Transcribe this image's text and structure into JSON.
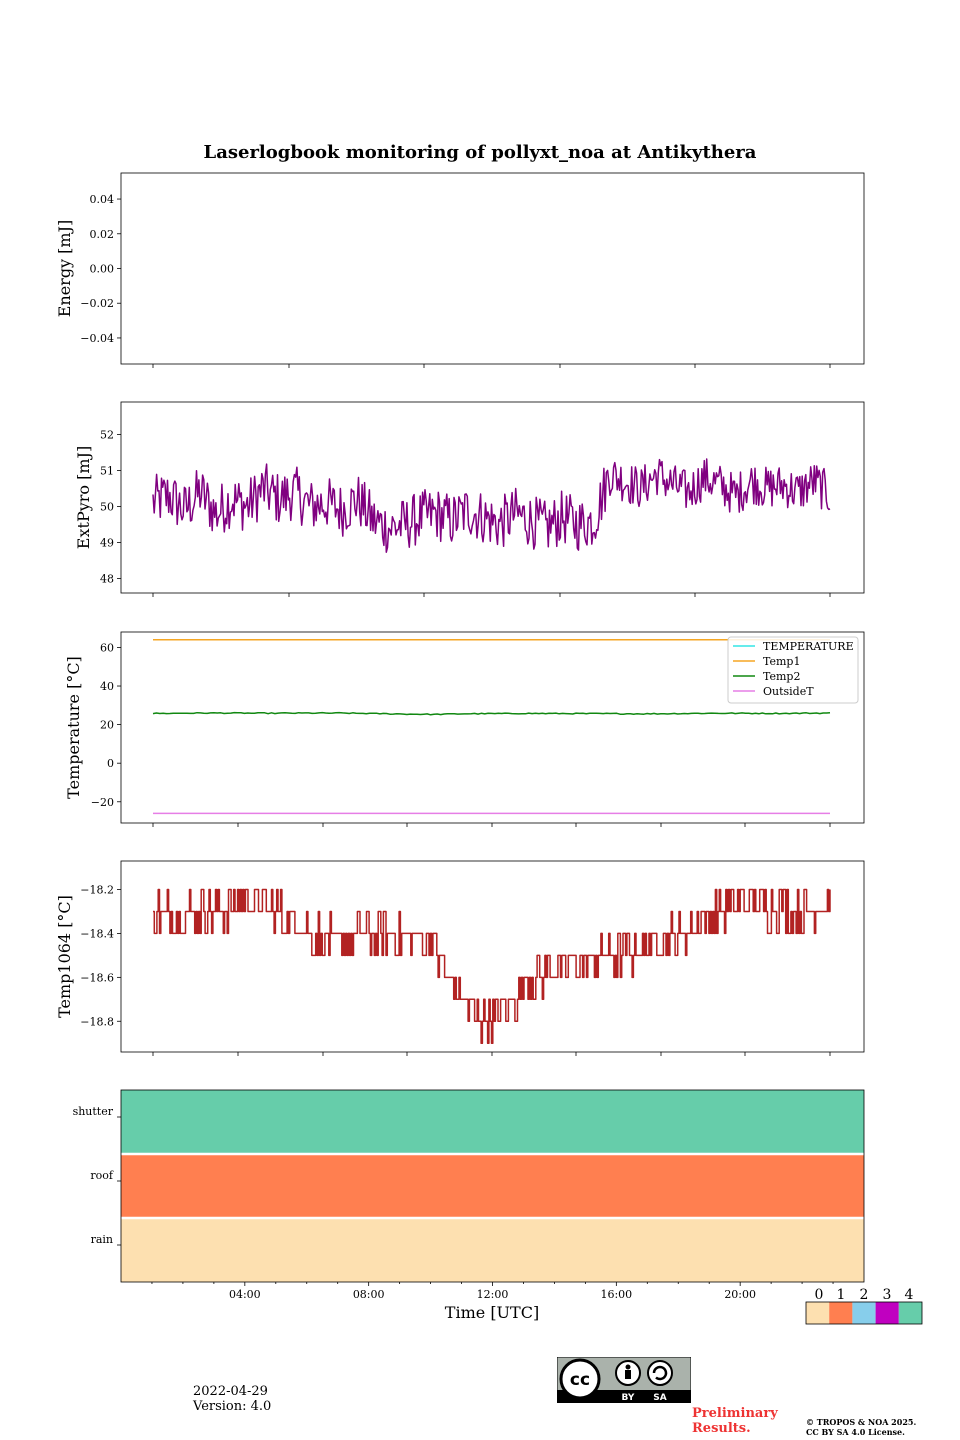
{
  "chart_data": [
    {
      "type": "line",
      "title": "Laserlogbook monitoring of pollyxt_noa at Antikythera",
      "ylabel": "Energy [mJ]",
      "ylim": [
        -0.055,
        0.055
      ],
      "yticks": [
        "0.04",
        "0.02",
        "0.00",
        "−0.02",
        "−0.04"
      ],
      "ytick_values": [
        0.04,
        0.02,
        0.0,
        -0.02,
        -0.04
      ],
      "series": []
    },
    {
      "type": "line",
      "ylabel": "ExtPyro [mJ]",
      "ylim": [
        47.6,
        52.9
      ],
      "yticks": [
        "52",
        "51",
        "50",
        "49",
        "48"
      ],
      "ytick_values": [
        52,
        51,
        50,
        49,
        48
      ],
      "x_hours": [
        1.0,
        1.5,
        2.0,
        2.5,
        3.0,
        3.5,
        4.0,
        4.5,
        5.0,
        5.5,
        6.0,
        6.5,
        7.0,
        7.5,
        8.0,
        8.5,
        9.0,
        9.5,
        10.0,
        10.5,
        11.0,
        11.5,
        12.0,
        12.5,
        13.0,
        13.5,
        14.0,
        14.5,
        15.0,
        15.5,
        16.0,
        16.5,
        17.0,
        17.5,
        18.0,
        18.5,
        19.0,
        19.5,
        20.0,
        20.5,
        21.0,
        21.5,
        22.0,
        22.5
      ],
      "series": [
        {
          "color": "#800080",
          "values": [
            50.1,
            50.3,
            49.9,
            50.4,
            49.8,
            50.2,
            50.0,
            50.5,
            50.2,
            50.4,
            50.0,
            50.1,
            49.9,
            50.2,
            49.6,
            49.4,
            49.5,
            49.7,
            49.8,
            49.6,
            49.9,
            49.7,
            49.5,
            49.8,
            49.6,
            49.4,
            49.7,
            49.5,
            49.6,
            50.9,
            50.7,
            50.5,
            50.9,
            50.6,
            50.4,
            50.8,
            50.6,
            50.3,
            50.7,
            50.5,
            50.6,
            50.4,
            50.7,
            50.3
          ]
        }
      ]
    },
    {
      "type": "line",
      "ylabel": "Temperature [°C]",
      "ylim": [
        -31,
        68
      ],
      "yticks": [
        "60",
        "40",
        "20",
        "0",
        "−20"
      ],
      "ytick_values": [
        60,
        40,
        20,
        0,
        -20
      ],
      "legend": "top-right",
      "x_hours": [
        1.0,
        3.0,
        5.0,
        7.0,
        9.0,
        10.0,
        11.0,
        13.0,
        15.0,
        17.0,
        19.0,
        21.0,
        22.8
      ],
      "series": [
        {
          "name": "TEMPERATURE",
          "color": "#33e6e6",
          "values": []
        },
        {
          "name": "Temp1",
          "color": "#f5a623",
          "values": [
            64,
            64,
            64,
            64,
            64,
            64,
            64,
            64,
            64,
            64,
            64,
            64,
            64
          ]
        },
        {
          "name": "Temp2",
          "color": "#118811",
          "values": [
            25.8,
            26.0,
            25.9,
            26.0,
            25.5,
            25.3,
            25.6,
            25.8,
            25.7,
            25.6,
            25.9,
            25.8,
            26.0
          ]
        },
        {
          "name": "OutsideT",
          "color": "#e67ee6",
          "values": [
            -26,
            -26,
            -26,
            -26,
            -26,
            -26,
            -26,
            -26,
            -26,
            -26,
            -26,
            -26,
            -26
          ]
        }
      ]
    },
    {
      "type": "line",
      "ylabel": "Temp1064 [°C]",
      "ylim": [
        -18.94,
        -18.07
      ],
      "yticks": [
        "−18.2",
        "−18.4",
        "−18.6",
        "−18.8"
      ],
      "ytick_values": [
        -18.2,
        -18.4,
        -18.6,
        -18.8
      ],
      "x_hours": [
        1.0,
        2.0,
        3.0,
        4.0,
        5.0,
        6.0,
        7.0,
        8.0,
        9.0,
        10.0,
        10.5,
        11.0,
        11.5,
        12.0,
        12.5,
        13.0,
        14.0,
        15.0,
        16.0,
        17.0,
        18.0,
        19.0,
        20.0,
        21.0,
        22.0,
        22.8
      ],
      "series": [
        {
          "color": "#b22222",
          "values": [
            -18.3,
            -18.3,
            -18.3,
            -18.25,
            -18.3,
            -18.4,
            -18.45,
            -18.4,
            -18.4,
            -18.45,
            -18.6,
            -18.7,
            -18.8,
            -18.78,
            -18.72,
            -18.62,
            -18.55,
            -18.52,
            -18.5,
            -18.45,
            -18.4,
            -18.32,
            -18.25,
            -18.28,
            -18.3,
            -18.25
          ]
        }
      ]
    },
    {
      "type": "heatmap",
      "rows": [
        "shutter",
        "roof",
        "rain"
      ],
      "row_values": [
        4,
        1,
        0
      ],
      "colorbar_ticks": [
        "0",
        "1",
        "2",
        "3",
        "4"
      ],
      "colorbar_colors": [
        "#fde0b0",
        "#ff7f50",
        "#87ceeb",
        "#c000c0",
        "#66cdaa"
      ],
      "xlabel": "Time [UTC]",
      "xticks": [
        "04:00",
        "08:00",
        "12:00",
        "16:00",
        "20:00"
      ],
      "xtick_hours": [
        4,
        8,
        12,
        16,
        20
      ],
      "xlim_hours": [
        0,
        24
      ]
    }
  ],
  "footer": {
    "date": "2022-04-29",
    "version": "Version: 4.0",
    "preliminary_line1": "Preliminary",
    "preliminary_line2": "Results.",
    "copyright_line1": "© TROPOS & NOA 2025.",
    "copyright_line2": "CC BY SA 4.0 License.",
    "license_badge": [
      "BY",
      "SA"
    ]
  }
}
